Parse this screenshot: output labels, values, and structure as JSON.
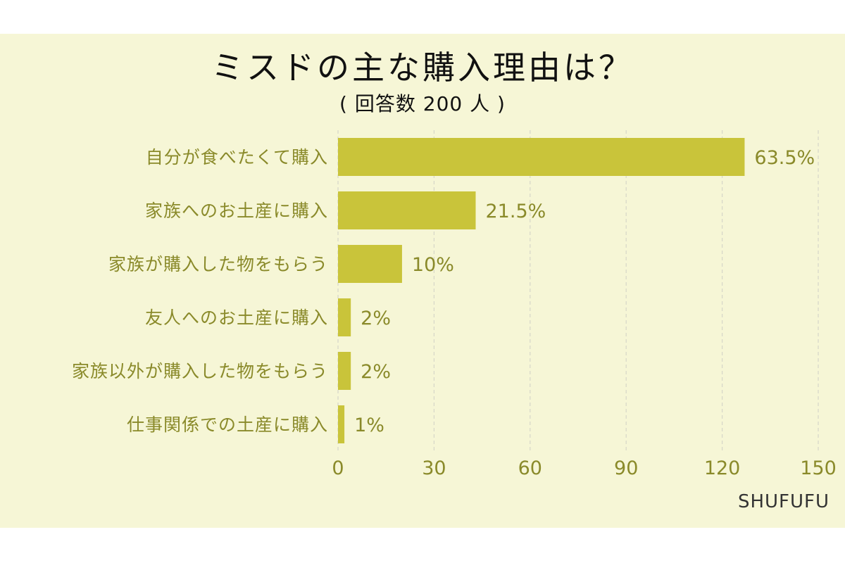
{
  "chart_data": {
    "type": "bar",
    "orientation": "horizontal",
    "title": "ミスドの主な購入理由は？",
    "subtitle": "( 回答数 200 人 )",
    "categories": [
      "自分が食べたくて購入",
      "家族へのお土産に購入",
      "家族が購入した物をもらう",
      "友人へのお土産に購入",
      "家族以外が購入した物をもらう",
      "仕事関係での土産に購入"
    ],
    "values": [
      127,
      43,
      20,
      4,
      4,
      2
    ],
    "value_labels": [
      "63.5%",
      "21.5%",
      "10%",
      "2%",
      "2%",
      "1%"
    ],
    "xlim": [
      0,
      150
    ],
    "xticks": [
      0,
      30,
      60,
      90,
      120,
      150
    ],
    "grid": true,
    "bar_color": "#c9c43a",
    "label_color": "#8a8a2a",
    "grid_color": "#d6d6c8"
  },
  "brand": "SHUFUFU",
  "colors": {
    "background": "#f6f6d6",
    "title": "#111111"
  }
}
